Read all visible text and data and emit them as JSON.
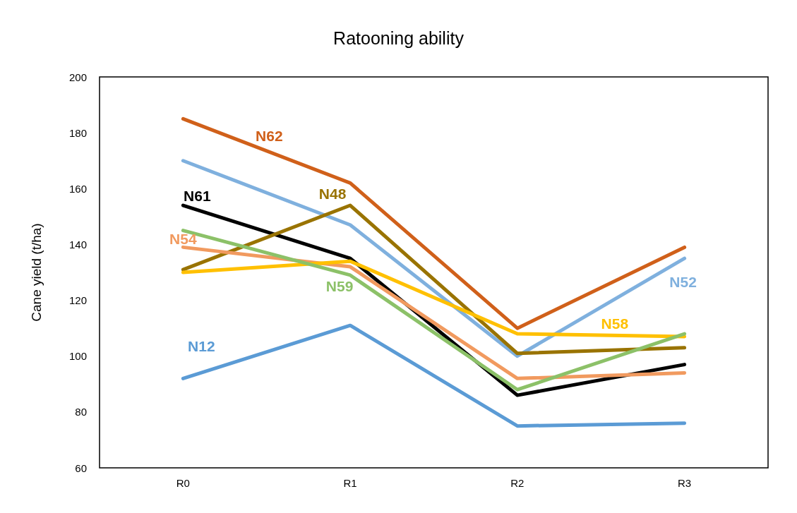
{
  "chart_data": {
    "type": "line",
    "title": "Ratooning ability",
    "ylabel": "Cane yield (t/ha)",
    "categories": [
      "R0",
      "R1",
      "R2",
      "R3"
    ],
    "series": [
      {
        "name": "N62",
        "color": "#d0601a",
        "values": [
          185,
          162,
          110,
          139
        ]
      },
      {
        "name": "N52",
        "color": "#7fb0de",
        "values": [
          170,
          147,
          100,
          135
        ]
      },
      {
        "name": "N61",
        "color": "#000000",
        "values": [
          154,
          135,
          86,
          97
        ]
      },
      {
        "name": "N48",
        "color": "#997300",
        "values": [
          131,
          154,
          101,
          103
        ]
      },
      {
        "name": "N54",
        "color": "#f19a5f",
        "values": [
          139,
          132,
          92,
          94
        ]
      },
      {
        "name": "N58",
        "color": "#ffc000",
        "values": [
          130,
          134,
          108,
          107
        ]
      },
      {
        "name": "N59",
        "color": "#8cc168",
        "values": [
          145,
          129,
          88,
          108
        ]
      },
      {
        "name": "N12",
        "color": "#5b9bd5",
        "values": [
          92,
          111,
          75,
          76
        ]
      }
    ],
    "ylim": [
      60,
      200
    ],
    "yticks": [
      60,
      80,
      100,
      120,
      140,
      160,
      180,
      200
    ],
    "grid": false,
    "legend": false,
    "marker": "none",
    "line_style": "solid"
  }
}
